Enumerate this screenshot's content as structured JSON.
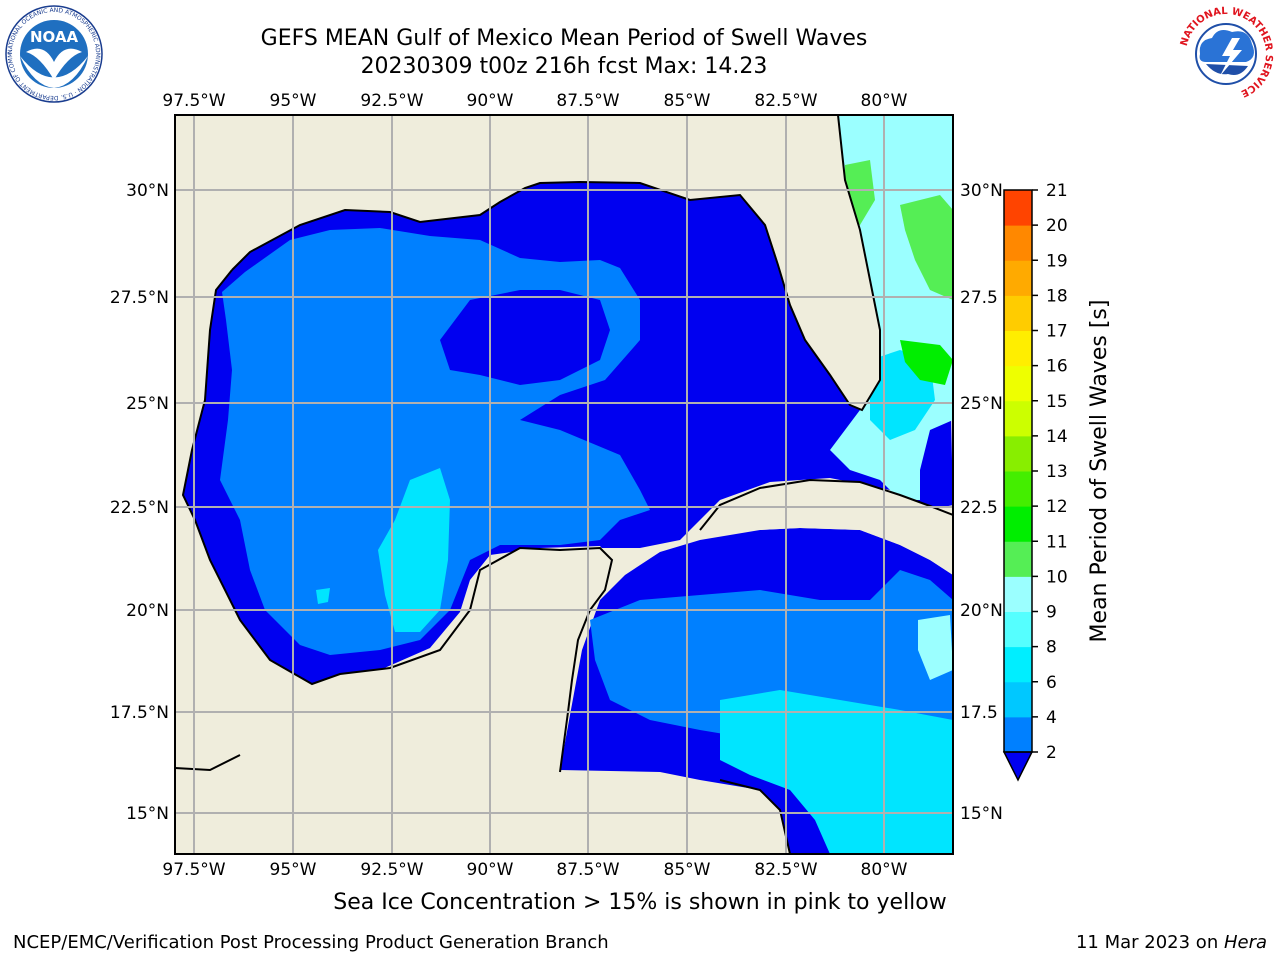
{
  "header": {
    "title_line1": "GEFS MEAN Gulf of Mexico Mean Period of Swell Waves",
    "title_line2": "20230309 t00z 216h fcst   Max: 14.23"
  },
  "map": {
    "lon_labels": [
      "97.5°W",
      "95°W",
      "92.5°W",
      "90°W",
      "87.5°W",
      "85°W",
      "82.5°W",
      "80°W"
    ],
    "lat_labels_left": [
      "30°N",
      "27.5°N",
      "25°N",
      "22.5°N",
      "20°N",
      "17.5°N",
      "15°N"
    ],
    "lat_labels_right": [
      "30°N",
      "27.5",
      "25°N",
      "22.5",
      "20°N",
      "17.5",
      "15°N"
    ],
    "colors": {
      "land": "#efeddc",
      "deep": "#0000f0",
      "mid": "#0080ff",
      "light": "#00e5ff",
      "pale": "#9bffff",
      "green": "#55ee55",
      "bright_green": "#44ee00",
      "yellow_green": "#ccff00"
    }
  },
  "colorbar": {
    "label": "Mean Period of Swell Waves [s]",
    "ticks": [
      "2",
      "4",
      "6",
      "8",
      "9",
      "10",
      "11",
      "12",
      "13",
      "14",
      "15",
      "16",
      "17",
      "18",
      "19",
      "20",
      "21"
    ],
    "colors": [
      "#0080ff",
      "#00c8ff",
      "#00eeff",
      "#55ffff",
      "#9bffff",
      "#55ee55",
      "#00ee00",
      "#44ee00",
      "#88ee00",
      "#ccff00",
      "#eeff00",
      "#ffee00",
      "#ffcc00",
      "#ffaa00",
      "#ff8800",
      "#ff4400",
      "#ff1100",
      "#ff0000"
    ],
    "under_color": "#0000f0"
  },
  "footer": {
    "note": "Sea Ice Concentration > 15% is shown in pink to yellow",
    "credit_left": "NCEP/EMC/Verification Post Processing Product Generation Branch",
    "credit_right_prefix": "11 Mar 2023 on ",
    "credit_right_host": "Hera"
  },
  "logos": {
    "noaa": "NOAA",
    "noaa_ring": "NATIONAL OCEANIC AND ATMOSPHERIC ADMINISTRATION · U.S. DEPARTMENT OF COMMERCE",
    "nws_ring": "NATIONAL WEATHER SERVICE"
  }
}
